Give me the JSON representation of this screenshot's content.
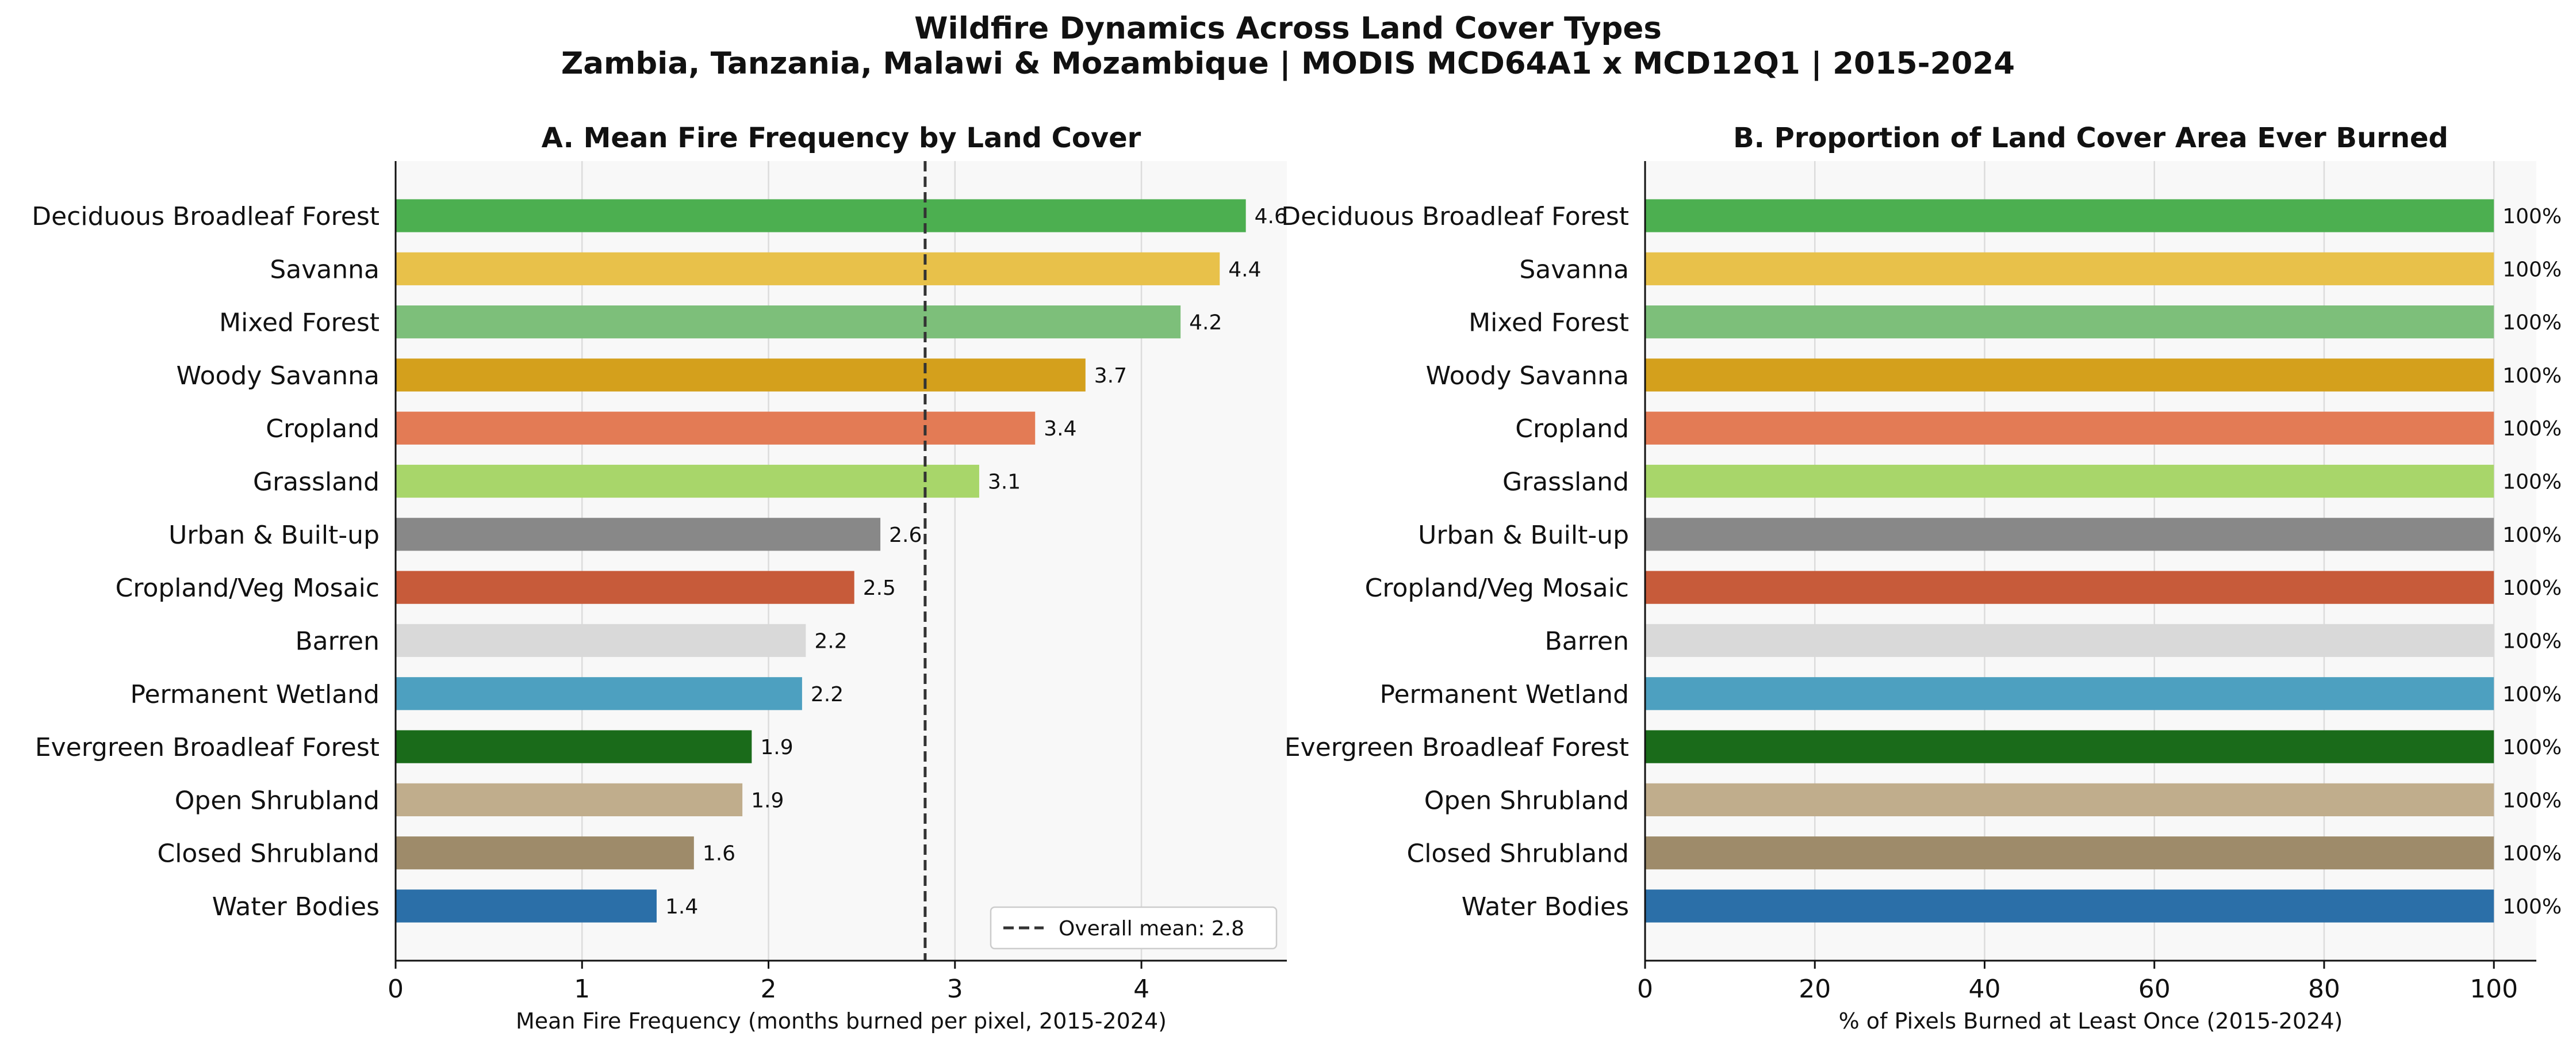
{
  "figure": {
    "title_line1": "Wildfire Dynamics Across Land Cover Types",
    "title_line2": "Zambia, Tanzania, Malawi & Mozambique | MODIS MCD64A1 x MCD12Q1 | 2015-2024"
  },
  "chart_data": [
    {
      "type": "bar",
      "orientation": "horizontal",
      "title": "A. Mean Fire Frequency by Land Cover",
      "xlabel": "Mean Fire Frequency (months burned per pixel, 2015-2024)",
      "ylabel": "",
      "xlim": [
        0,
        4.78
      ],
      "xticks": [
        0,
        1,
        2,
        3,
        4
      ],
      "grid": "vertical",
      "categories": [
        "Deciduous Broadleaf Forest",
        "Savanna",
        "Mixed Forest",
        "Woody Savanna",
        "Cropland",
        "Grassland",
        "Urban & Built-up",
        "Cropland/Veg Mosaic",
        "Barren",
        "Permanent Wetland",
        "Evergreen Broadleaf Forest",
        "Open Shrubland",
        "Closed Shrubland",
        "Water Bodies"
      ],
      "values": [
        4.56,
        4.42,
        4.21,
        3.7,
        3.43,
        3.13,
        2.6,
        2.46,
        2.2,
        2.18,
        1.91,
        1.86,
        1.6,
        1.4
      ],
      "value_labels": [
        "4.6",
        "4.4",
        "4.2",
        "3.7",
        "3.4",
        "3.1",
        "2.6",
        "2.5",
        "2.2",
        "2.2",
        "1.9",
        "1.9",
        "1.6",
        "1.4"
      ],
      "colors": [
        "#4caf50",
        "#e8c14a",
        "#7dbf7a",
        "#d4a01c",
        "#e37b55",
        "#a8d66a",
        "#888888",
        "#c75b3a",
        "#d9d9d9",
        "#4da0c0",
        "#1a6b1a",
        "#c0ad8c",
        "#9e8b6a",
        "#2b6fa8"
      ],
      "reference_line": {
        "value": 2.84,
        "label": "Overall mean: 2.8"
      },
      "legend": "bottom-right"
    },
    {
      "type": "bar",
      "orientation": "horizontal",
      "title": "B. Proportion of Land Cover Area Ever Burned",
      "xlabel": "% of Pixels Burned at Least Once (2015-2024)",
      "ylabel": "",
      "xlim": [
        0,
        105
      ],
      "xticks": [
        0,
        20,
        40,
        60,
        80,
        100
      ],
      "grid": "vertical",
      "categories": [
        "Deciduous Broadleaf Forest",
        "Savanna",
        "Mixed Forest",
        "Woody Savanna",
        "Cropland",
        "Grassland",
        "Urban & Built-up",
        "Cropland/Veg Mosaic",
        "Barren",
        "Permanent Wetland",
        "Evergreen Broadleaf Forest",
        "Open Shrubland",
        "Closed Shrubland",
        "Water Bodies"
      ],
      "values": [
        100,
        100,
        100,
        100,
        100,
        100,
        100,
        100,
        100,
        100,
        100,
        100,
        100,
        100
      ],
      "value_labels": [
        "100%",
        "100%",
        "100%",
        "100%",
        "100%",
        "100%",
        "100%",
        "100%",
        "100%",
        "100%",
        "100%",
        "100%",
        "100%",
        "100%"
      ],
      "colors": [
        "#4caf50",
        "#e8c14a",
        "#7dbf7a",
        "#d4a01c",
        "#e37b55",
        "#a8d66a",
        "#888888",
        "#c75b3a",
        "#d9d9d9",
        "#4da0c0",
        "#1a6b1a",
        "#c0ad8c",
        "#9e8b6a",
        "#2b6fa8"
      ]
    }
  ]
}
